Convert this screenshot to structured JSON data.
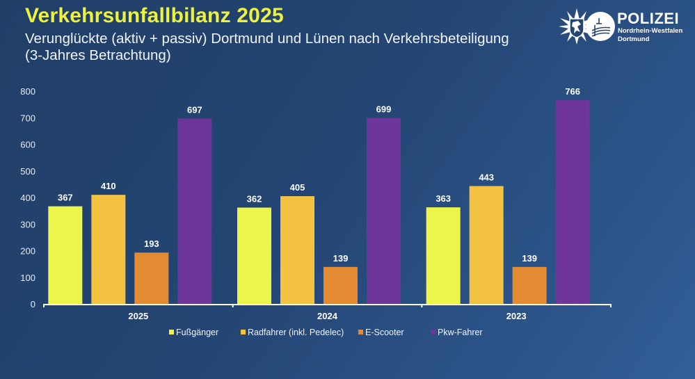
{
  "header": {
    "title": "Verkehrsunfallbilanz 2025",
    "subtitle_line1": "Verunglückte (aktiv + passiv) Dortmund und Lünen nach Verkehrsbeteiligung",
    "subtitle_line2": "(3-Jahres Betrachtung)"
  },
  "logo": {
    "icon": "police-star-icon",
    "main": "POLIZEI",
    "sub1": "Nordrhein-Westfalen",
    "sub2": "Dortmund"
  },
  "chart_data": {
    "type": "bar",
    "title": "Verkehrsunfallbilanz 2025",
    "subtitle": "Verunglückte (aktiv + passiv) Dortmund und Lünen nach Verkehrsbeteiligung (3-Jahres Betrachtung)",
    "xlabel": "",
    "ylabel": "",
    "categories": [
      "2025",
      "2024",
      "2023"
    ],
    "series": [
      {
        "name": "Fußgänger",
        "color": "#ecf64a",
        "values": [
          367,
          362,
          363
        ]
      },
      {
        "name": "Radfahrer (inkl. Pedelec)",
        "color": "#f3c243",
        "values": [
          410,
          405,
          443
        ]
      },
      {
        "name": "E-Scooter",
        "color": "#e48a33",
        "values": [
          193,
          139,
          139
        ]
      },
      {
        "name": "Pkw-Fahrer",
        "color": "#6e369a",
        "values": [
          697,
          699,
          766
        ]
      }
    ],
    "ylim": [
      0,
      800
    ],
    "yticks": [
      0,
      100,
      200,
      300,
      400,
      500,
      600,
      700,
      800
    ],
    "grid": false,
    "legend": "bottom-center",
    "data_labels": true
  }
}
